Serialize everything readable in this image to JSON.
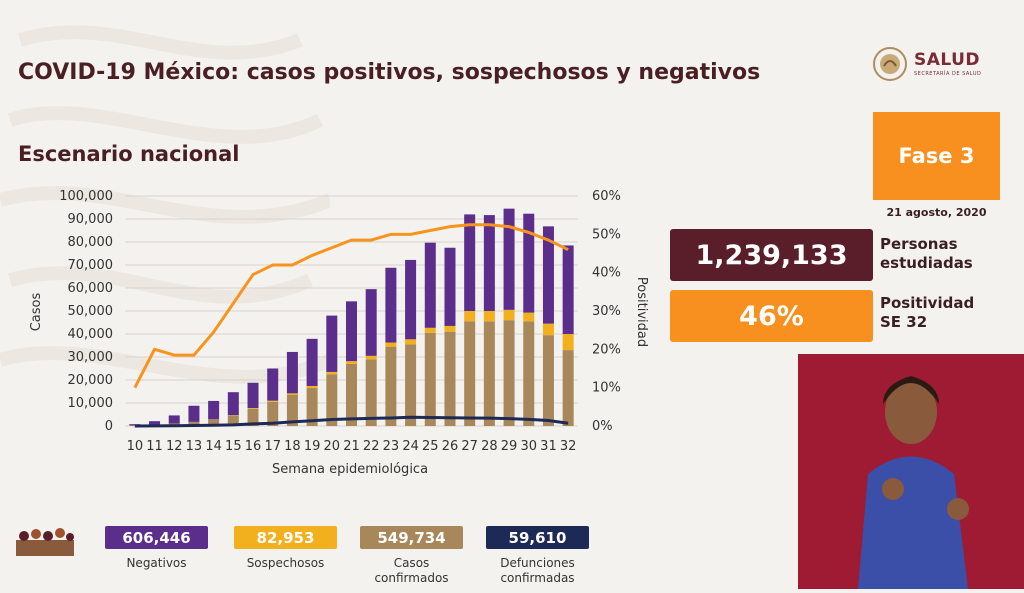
{
  "header": {
    "title": "COVID-19 México: casos positivos, sospechosos y negativos",
    "subtitle": "Escenario nacional"
  },
  "logo": {
    "name": "SALUD",
    "sub": "SECRETARÍA DE SALUD"
  },
  "phase": {
    "label": "Fase 3",
    "date": "21 agosto, 2020"
  },
  "summary": {
    "studied_value": "1,239,133",
    "studied_label_1": "Personas",
    "studied_label_2": "estudiadas",
    "positivity_value": "46%",
    "positivity_label_1": "Positividad",
    "positivity_label_2": "SE 32"
  },
  "stats": [
    {
      "value": "606,446",
      "label": "Negativos",
      "color": "#5b2e8c"
    },
    {
      "value": "82,953",
      "label": "Sospechosos",
      "color": "#f2b01e"
    },
    {
      "value": "549,734",
      "label": "Casos confirmados",
      "color": "#a8875a"
    },
    {
      "value": "59,610",
      "label": "Defunciones confirmadas",
      "color": "#1c2a55"
    }
  ],
  "colors": {
    "negativos": "#5b2e8c",
    "sospechosos": "#f2b01e",
    "confirmados": "#a8875a",
    "defunciones": "#1c2a55",
    "positividad": "#f7941d"
  },
  "chart_data": {
    "type": "bar",
    "stacked": true,
    "xlabel": "Semana epidemiológica",
    "ylabel": "Casos",
    "y2label": "Positividad",
    "ylim": [
      0,
      100000
    ],
    "y2lim": [
      0,
      60
    ],
    "yticks": [
      "0",
      "10,000",
      "20,000",
      "30,000",
      "40,000",
      "50,000",
      "60,000",
      "70,000",
      "80,000",
      "90,000",
      "100,000"
    ],
    "y2ticks": [
      "0%",
      "10%",
      "20%",
      "30%",
      "40%",
      "50%",
      "60%"
    ],
    "grid": true,
    "categories": [
      "10",
      "11",
      "12",
      "13",
      "14",
      "15",
      "16",
      "17",
      "18",
      "19",
      "20",
      "21",
      "22",
      "23",
      "24",
      "25",
      "26",
      "27",
      "28",
      "29",
      "30",
      "31",
      "32"
    ],
    "series": [
      {
        "name": "Casos confirmados",
        "values": [
          300,
          600,
          1100,
          1800,
          2800,
          4500,
          7500,
          10500,
          13500,
          16500,
          22500,
          27000,
          29000,
          34500,
          35500,
          40500,
          41000,
          45500,
          45500,
          46000,
          45500,
          39500,
          33000
        ]
      },
      {
        "name": "Sospechosos",
        "values": [
          0,
          0,
          0,
          0,
          100,
          200,
          300,
          500,
          700,
          900,
          1000,
          1200,
          1500,
          1800,
          2200,
          2200,
          2500,
          4500,
          4500,
          4500,
          3800,
          5000,
          7000
        ]
      },
      {
        "name": "Negativos",
        "values": [
          500,
          1500,
          3500,
          7000,
          8000,
          10000,
          11000,
          14000,
          18000,
          20500,
          24500,
          26000,
          29000,
          32500,
          34500,
          37000,
          34000,
          42000,
          41700,
          44000,
          43000,
          42300,
          38500
        ]
      },
      {
        "name": "Defunciones",
        "type": "line",
        "values": [
          20,
          50,
          100,
          200,
          300,
          500,
          900,
          1200,
          1800,
          2300,
          2800,
          3100,
          3300,
          3500,
          3800,
          3700,
          3600,
          3500,
          3400,
          3200,
          2900,
          2400,
          1200
        ]
      },
      {
        "name": "Positividad",
        "type": "line",
        "axis": "right",
        "values": [
          10,
          20,
          18.5,
          18.5,
          24.5,
          32,
          39.5,
          42,
          42,
          44.5,
          46.5,
          48.5,
          48.5,
          50,
          50,
          51,
          52,
          52.5,
          52.5,
          52,
          50.5,
          48.5,
          46
        ]
      }
    ]
  }
}
